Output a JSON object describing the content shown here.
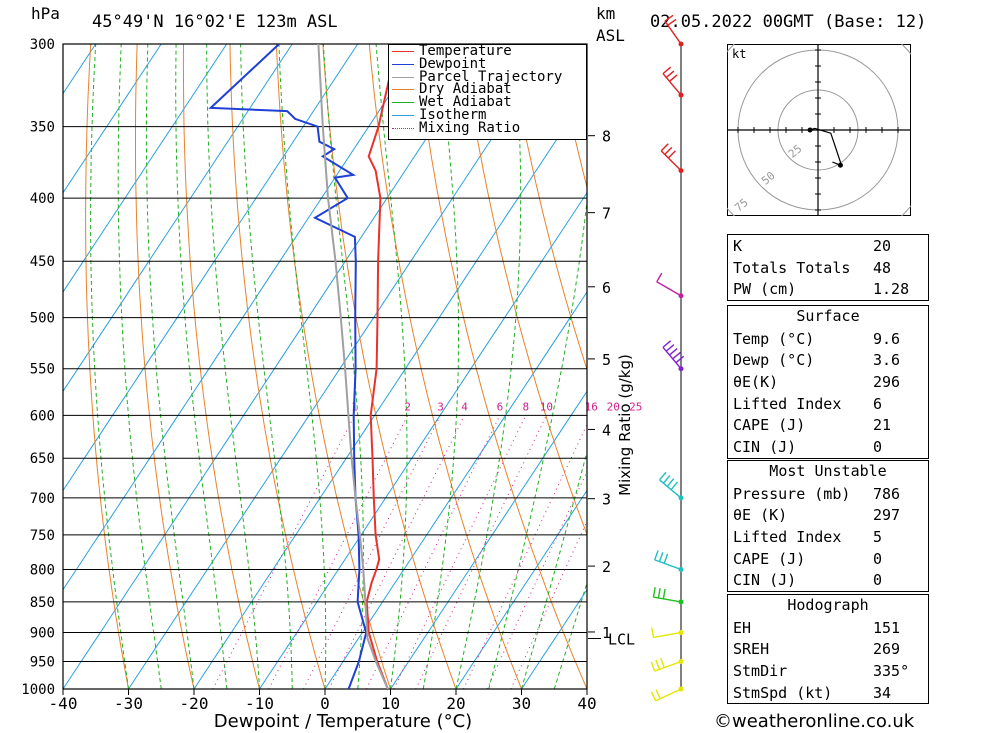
{
  "header": {
    "pressure_unit": "hPa",
    "location": "45°49'N  16°02'E  123m  ASL",
    "km_label": "km",
    "asl_label": "ASL",
    "datetime": "02.05.2022  00GMT  (Base: 12)"
  },
  "footer": {
    "copyright": "©weatheronline.co.uk"
  },
  "hodograph": {
    "unit_label": "kt",
    "ring_labels": [
      "25",
      "50",
      "75"
    ]
  },
  "legend": [
    {
      "label": "Temperature",
      "color": "#e8322b"
    },
    {
      "label": "Dewpoint",
      "color": "#1f3fd6"
    },
    {
      "label": "Parcel Trajectory",
      "color": "#a0a0a0"
    },
    {
      "label": "Dry Adiabat",
      "color": "#e8822a"
    },
    {
      "label": "Wet Adiabat",
      "color": "#22b022"
    },
    {
      "label": "Isotherm",
      "color": "#2aa0e0"
    },
    {
      "label": "Mixing Ratio",
      "color": "#d0208a"
    }
  ],
  "indices": {
    "k": {
      "label": "K",
      "value": "20"
    },
    "tt": {
      "label": "Totals Totals",
      "value": "48"
    },
    "pw": {
      "label": "PW (cm)",
      "value": "1.28"
    }
  },
  "surface": {
    "title": "Surface",
    "rows": [
      {
        "label": "Temp (°C)",
        "value": "9.6"
      },
      {
        "label": "Dewp (°C)",
        "value": "3.6"
      },
      {
        "label": "θE(K)",
        "value": "296"
      },
      {
        "label": "Lifted Index",
        "value": "6"
      },
      {
        "label": "CAPE (J)",
        "value": "21"
      },
      {
        "label": "CIN (J)",
        "value": "0"
      }
    ]
  },
  "most_unstable": {
    "title": "Most Unstable",
    "rows": [
      {
        "label": "Pressure (mb)",
        "value": "786"
      },
      {
        "label": "θE (K)",
        "value": "297"
      },
      {
        "label": "Lifted Index",
        "value": "5"
      },
      {
        "label": "CAPE (J)",
        "value": "0"
      },
      {
        "label": "CIN (J)",
        "value": "0"
      }
    ]
  },
  "hodograph_table": {
    "title": "Hodograph",
    "rows": [
      {
        "label": "EH",
        "value": "151"
      },
      {
        "label": "SREH",
        "value": "269"
      },
      {
        "label": "StmDir",
        "value": "335°"
      },
      {
        "label": "StmSpd (kt)",
        "value": "34"
      }
    ]
  },
  "chart_data": {
    "type": "line",
    "title": "45°49'N  16°02'E  123m  ASL",
    "xlabel": "Dewpoint / Temperature (°C)",
    "ylabel": "hPa",
    "y2label": "Mixing Ratio (g/kg)",
    "xlim": [
      -40,
      40
    ],
    "ylim": [
      1000,
      300
    ],
    "y_scale": "log",
    "x_ticks": [
      -40,
      -30,
      -20,
      -10,
      0,
      10,
      20,
      30,
      40
    ],
    "pressure_ticks": [
      300,
      350,
      400,
      450,
      500,
      550,
      600,
      650,
      700,
      750,
      800,
      850,
      900,
      950,
      1000
    ],
    "km_ticks": [
      {
        "label": "1",
        "p": 899
      },
      {
        "label": "2",
        "p": 795
      },
      {
        "label": "3",
        "p": 701
      },
      {
        "label": "4",
        "p": 616
      },
      {
        "label": "5",
        "p": 540
      },
      {
        "label": "6",
        "p": 472
      },
      {
        "label": "7",
        "p": 411
      },
      {
        "label": "8",
        "p": 356
      }
    ],
    "lcl": {
      "label": "LCL",
      "p": 910
    },
    "mixing_ratio_labels": [
      "1",
      "2",
      "3",
      "4",
      "6",
      "8",
      "10",
      "16",
      "20",
      "25"
    ],
    "mixing_ratio_values": [
      1,
      2,
      3,
      4,
      6,
      8,
      10,
      16,
      20,
      25
    ],
    "series": [
      {
        "name": "Temperature",
        "color": "#e8322b",
        "points": [
          [
            1000,
            9.6
          ],
          [
            950,
            5.2
          ],
          [
            900,
            1.0
          ],
          [
            850,
            -2.4
          ],
          [
            820,
            -3.6
          ],
          [
            800,
            -4.2
          ],
          [
            785,
            -4.8
          ],
          [
            750,
            -7.8
          ],
          [
            700,
            -11.8
          ],
          [
            650,
            -16.0
          ],
          [
            600,
            -20.6
          ],
          [
            550,
            -24.4
          ],
          [
            500,
            -29.4
          ],
          [
            450,
            -35.0
          ],
          [
            400,
            -41.0
          ],
          [
            380,
            -44.5
          ],
          [
            370,
            -47.0
          ],
          [
            350,
            -48.5
          ],
          [
            300,
            -54.0
          ]
        ]
      },
      {
        "name": "Dewpoint",
        "color": "#1f3fd6",
        "points": [
          [
            1000,
            3.6
          ],
          [
            950,
            2.4
          ],
          [
            900,
            0.6
          ],
          [
            850,
            -3.8
          ],
          [
            800,
            -6.8
          ],
          [
            750,
            -10.4
          ],
          [
            700,
            -14.6
          ],
          [
            650,
            -18.8
          ],
          [
            600,
            -23.2
          ],
          [
            550,
            -27.6
          ],
          [
            500,
            -32.8
          ],
          [
            450,
            -38.4
          ],
          [
            430,
            -41.0
          ],
          [
            415,
            -49.0
          ],
          [
            400,
            -46.0
          ],
          [
            385,
            -50.0
          ],
          [
            383,
            -47.5
          ],
          [
            370,
            -54.0
          ],
          [
            365,
            -53.0
          ],
          [
            360,
            -56.0
          ],
          [
            350,
            -57.8
          ],
          [
            345,
            -62.0
          ],
          [
            340,
            -64.0
          ],
          [
            338,
            -76.0
          ],
          [
            300,
            -72.0
          ]
        ]
      },
      {
        "name": "Parcel Trajectory",
        "color": "#a0a0a0",
        "points": [
          [
            1000,
            9.6
          ],
          [
            950,
            5.0
          ],
          [
            910,
            1.4
          ],
          [
            850,
            -2.6
          ],
          [
            800,
            -6.2
          ],
          [
            750,
            -10.2
          ],
          [
            700,
            -14.6
          ],
          [
            650,
            -19.2
          ],
          [
            600,
            -24.0
          ],
          [
            550,
            -29.2
          ],
          [
            500,
            -35.0
          ],
          [
            450,
            -41.5
          ],
          [
            400,
            -49.0
          ],
          [
            350,
            -57.0
          ],
          [
            300,
            -66.0
          ]
        ]
      }
    ],
    "wind_barbs": [
      {
        "p": 1000,
        "dir": 245,
        "kt": 20,
        "color": "#e6e600"
      },
      {
        "p": 950,
        "dir": 250,
        "kt": 25,
        "color": "#e6e600"
      },
      {
        "p": 900,
        "dir": 260,
        "kt": 10,
        "color": "#e6e600"
      },
      {
        "p": 850,
        "dir": 280,
        "kt": 30,
        "color": "#20c020"
      },
      {
        "p": 800,
        "dir": 290,
        "kt": 30,
        "color": "#20c0c0"
      },
      {
        "p": 700,
        "dir": 310,
        "kt": 35,
        "color": "#20c0c0"
      },
      {
        "p": 550,
        "dir": 320,
        "kt": 45,
        "color": "#8020d0"
      },
      {
        "p": 480,
        "dir": 300,
        "kt": 10,
        "color": "#c020a0"
      },
      {
        "p": 380,
        "dir": 315,
        "kt": 25,
        "color": "#e02020"
      },
      {
        "p": 330,
        "dir": 320,
        "kt": 25,
        "color": "#e02020"
      },
      {
        "p": 300,
        "dir": 325,
        "kt": 20,
        "color": "#e02020"
      }
    ],
    "hodograph_points": [
      [
        -5,
        0
      ],
      [
        -2,
        1
      ],
      [
        8,
        -2
      ],
      [
        14,
        -20
      ],
      [
        14,
        -22
      ],
      [
        9,
        -20
      ]
    ],
    "storm_motion": [
      14,
      -22
    ]
  }
}
